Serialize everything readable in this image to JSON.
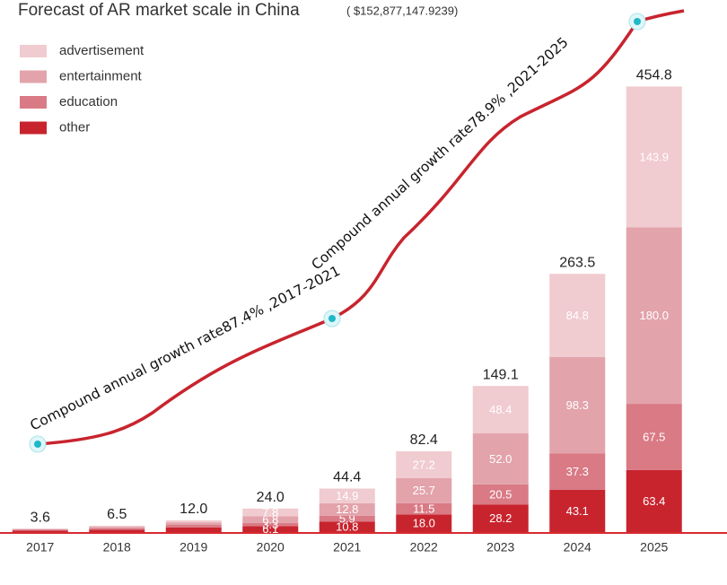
{
  "chart_data": {
    "type": "stacked_bar",
    "title": "Forecast of AR market scale in China",
    "subtitle": "( $152,877,147.9239)",
    "annotations": [
      "Compound annual growth rate87.4% ,2017-2021",
      "Compound annual growth rate78.9% ,2021-2025"
    ],
    "categories": [
      "2017",
      "2018",
      "2019",
      "2020",
      "2021",
      "2022",
      "2023",
      "2024",
      "2025"
    ],
    "series": [
      {
        "name": "advertisement",
        "color": "#f0cbd0",
        "values": [
          0.6,
          1.1,
          2.1,
          7.8,
          14.9,
          27.2,
          48.4,
          84.8,
          143.9
        ],
        "value_labels": [
          null,
          null,
          null,
          "7.8",
          "14.9",
          "27.2",
          "48.4",
          "84.8",
          "143.9"
        ]
      },
      {
        "name": "entertainment",
        "color": "#e3a3ab",
        "values": [
          0.7,
          1.4,
          2.5,
          6.8,
          12.8,
          25.7,
          52,
          98.3,
          180
        ],
        "value_labels": [
          null,
          null,
          null,
          "6.8",
          "12.8",
          "25.7",
          "52.0",
          "98.3",
          "180.0"
        ]
      },
      {
        "name": "education",
        "color": "#d97a85",
        "values": [
          0.8,
          1.5,
          2.6,
          3.3,
          5.9,
          11.5,
          20.5,
          37.3,
          67.5
        ],
        "value_labels": [
          null,
          null,
          null,
          "3.3",
          "5.9",
          "11.5",
          "20.5",
          "37.3",
          "67.5"
        ]
      },
      {
        "name": "other",
        "color": "#c8242e",
        "values": [
          1.5,
          2.5,
          4.8,
          6.1,
          10.8,
          18,
          28.2,
          43.1,
          63.4
        ],
        "value_labels": [
          null,
          null,
          null,
          "6.1",
          "10.8",
          "18.0",
          "28.2",
          "43.1",
          "63.4"
        ]
      }
    ],
    "totals": [
      3.6,
      6.5,
      12,
      24,
      44.4,
      82.4,
      149.1,
      263.5,
      454.8
    ],
    "total_labels": [
      "3.6",
      "6.5",
      "12.0",
      "24.0",
      "44.4",
      "82.4",
      "149.1",
      "263.5",
      "454.8"
    ],
    "ylim": [
      0,
      500
    ]
  }
}
